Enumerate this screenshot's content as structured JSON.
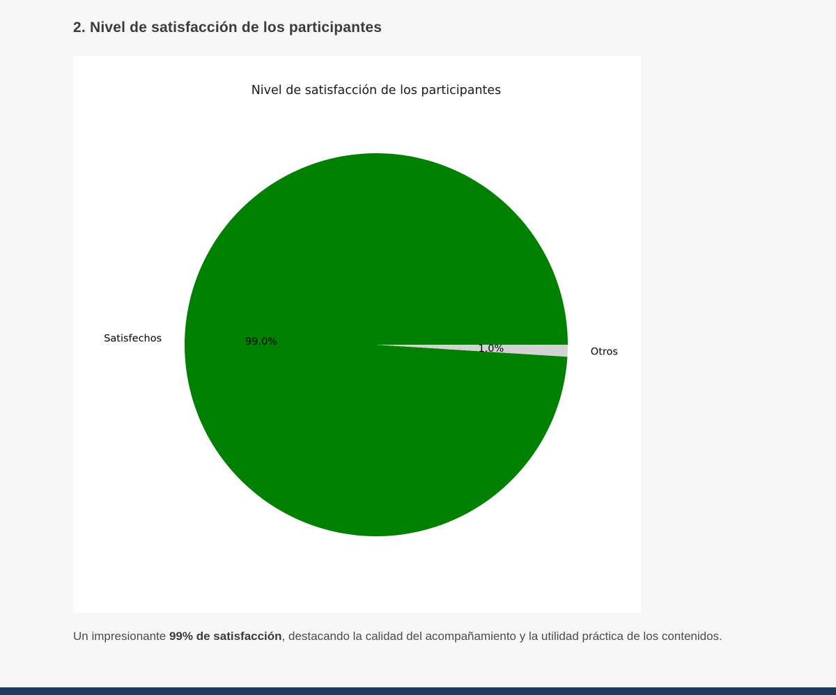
{
  "section": {
    "heading": "2. Nivel de satisfacción de los participantes"
  },
  "chart_data": {
    "type": "pie",
    "title": "Nivel de satisfacción de los participantes",
    "categories": [
      "Satisfechos",
      "Otros"
    ],
    "values": [
      99.0,
      1.0
    ],
    "pct_labels": [
      "99.0%",
      "1.0%"
    ],
    "colors": [
      "#008000",
      "#d3d3d3"
    ],
    "start_angle": 0,
    "direction": "counterclockwise",
    "legend_position": "none"
  },
  "summary": {
    "prefix": "Un impresionante ",
    "bold": "99% de satisfacción",
    "suffix": ", destacando la calidad del acompañamiento y la utilidad práctica de los contenidos."
  }
}
